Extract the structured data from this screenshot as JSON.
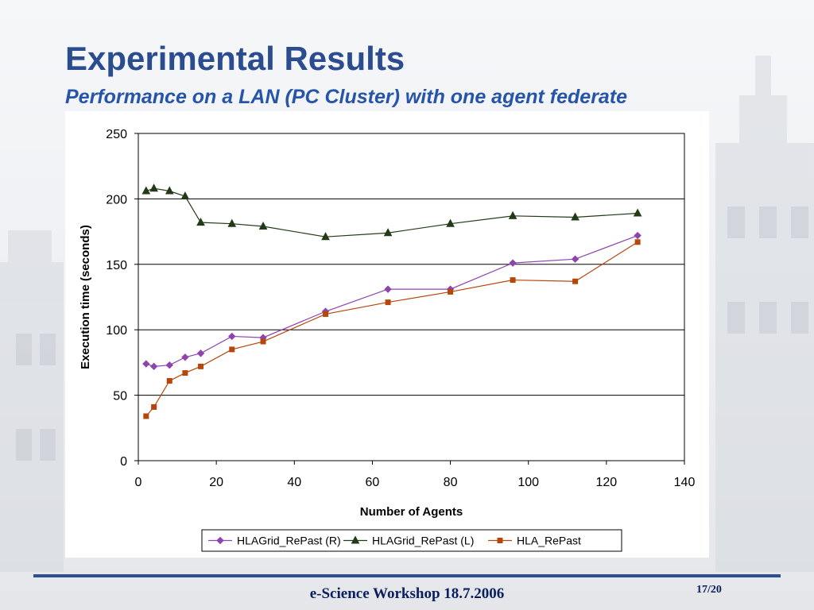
{
  "slide": {
    "title": "Experimental Results",
    "subtitle": "Performance on a LAN (PC Cluster) with one agent federate",
    "footer": "e-Science Workshop 18.7.2006",
    "page": "17/20"
  },
  "chart_data": {
    "type": "line",
    "title": "",
    "xlabel": "Number of Agents",
    "ylabel": "Execution time (seconds)",
    "xlim": [
      0,
      140
    ],
    "ylim": [
      0,
      250
    ],
    "xticks": [
      0,
      20,
      40,
      60,
      80,
      100,
      120,
      140
    ],
    "yticks": [
      0,
      50,
      100,
      150,
      200,
      250
    ],
    "grid": "horizontal",
    "legend_position": "bottom",
    "series": [
      {
        "name": "HLAGrid_RePast (R)",
        "color": "#8e44ad",
        "marker": "diamond",
        "x": [
          2,
          4,
          8,
          12,
          16,
          24,
          32,
          48,
          64,
          80,
          96,
          112,
          128
        ],
        "y": [
          74,
          72,
          73,
          79,
          82,
          95,
          94,
          114,
          131,
          131,
          151,
          154,
          172
        ]
      },
      {
        "name": "HLAGrid_RePast (L)",
        "color": "#233a17",
        "marker": "triangle",
        "x": [
          2,
          4,
          8,
          12,
          16,
          24,
          32,
          48,
          64,
          80,
          96,
          112,
          128
        ],
        "y": [
          206,
          208,
          206,
          202,
          182,
          181,
          179,
          171,
          174,
          181,
          187,
          186,
          189
        ]
      },
      {
        "name": "HLA_RePast",
        "color": "#b5470b",
        "marker": "square",
        "x": [
          2,
          4,
          8,
          12,
          16,
          24,
          32,
          48,
          64,
          80,
          96,
          112,
          128
        ],
        "y": [
          34,
          41,
          61,
          67,
          72,
          85,
          91,
          112,
          121,
          129,
          138,
          137,
          167
        ]
      }
    ]
  }
}
